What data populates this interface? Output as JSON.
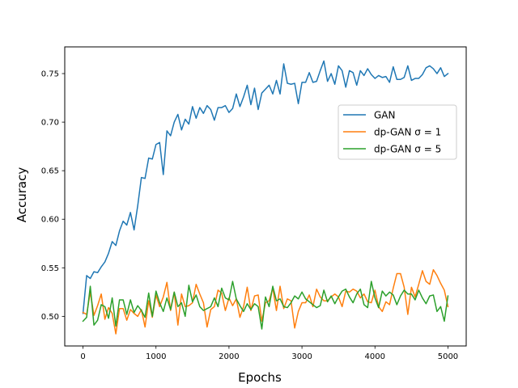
{
  "chart_data": {
    "type": "line",
    "xlabel": "Epochs",
    "ylabel": "Accuracy",
    "xlim": [
      -250,
      5250
    ],
    "ylim": [
      0.4695,
      0.7775
    ],
    "xticks": [
      0,
      1000,
      2000,
      3000,
      4000,
      5000
    ],
    "xtick_labels": [
      "0",
      "1000",
      "2000",
      "3000",
      "4000",
      "5000"
    ],
    "yticks": [
      0.5,
      0.55,
      0.6,
      0.65,
      0.7,
      0.75
    ],
    "ytick_labels": [
      "0.50",
      "0.55",
      "0.60",
      "0.65",
      "0.70",
      "0.75"
    ],
    "grid": false,
    "legend_position": "center-right",
    "x": [
      0,
      50,
      100,
      150,
      200,
      250,
      300,
      350,
      400,
      450,
      500,
      550,
      600,
      650,
      700,
      750,
      800,
      850,
      900,
      950,
      1000,
      1050,
      1100,
      1150,
      1200,
      1250,
      1300,
      1350,
      1400,
      1450,
      1500,
      1550,
      1600,
      1650,
      1700,
      1750,
      1800,
      1850,
      1900,
      1950,
      2000,
      2050,
      2100,
      2150,
      2200,
      2250,
      2300,
      2350,
      2400,
      2450,
      2500,
      2550,
      2600,
      2650,
      2700,
      2750,
      2800,
      2850,
      2900,
      2950,
      3000,
      3050,
      3100,
      3150,
      3200,
      3250,
      3300,
      3350,
      3400,
      3450,
      3500,
      3550,
      3600,
      3650,
      3700,
      3750,
      3800,
      3850,
      3900,
      3950,
      4000,
      4050,
      4100,
      4150,
      4200,
      4250,
      4300,
      4350,
      4400,
      4450,
      4500,
      4550,
      4600,
      4650,
      4700,
      4750,
      4800,
      4850,
      4900,
      4950,
      5000
    ],
    "series": [
      {
        "name": "GAN",
        "color": "#1f77b4",
        "values": [
          0.503,
          0.542,
          0.539,
          0.546,
          0.545,
          0.551,
          0.556,
          0.565,
          0.577,
          0.573,
          0.588,
          0.598,
          0.594,
          0.607,
          0.589,
          0.614,
          0.643,
          0.642,
          0.663,
          0.662,
          0.677,
          0.679,
          0.646,
          0.691,
          0.686,
          0.7,
          0.708,
          0.692,
          0.703,
          0.698,
          0.716,
          0.704,
          0.715,
          0.709,
          0.717,
          0.713,
          0.702,
          0.715,
          0.715,
          0.717,
          0.71,
          0.714,
          0.729,
          0.716,
          0.726,
          0.738,
          0.718,
          0.735,
          0.713,
          0.73,
          0.734,
          0.738,
          0.729,
          0.743,
          0.729,
          0.76,
          0.74,
          0.739,
          0.74,
          0.719,
          0.741,
          0.741,
          0.751,
          0.741,
          0.742,
          0.753,
          0.763,
          0.742,
          0.75,
          0.739,
          0.758,
          0.753,
          0.736,
          0.753,
          0.751,
          0.738,
          0.753,
          0.748,
          0.755,
          0.749,
          0.745,
          0.748,
          0.746,
          0.747,
          0.741,
          0.757,
          0.744,
          0.744,
          0.746,
          0.758,
          0.743,
          0.745,
          0.745,
          0.749,
          0.756,
          0.758,
          0.755,
          0.75,
          0.756,
          0.747,
          0.75
        ]
      },
      {
        "name": "dp-GAN σ = 1",
        "color": "#ff7f0e",
        "values": [
          0.504,
          0.502,
          0.525,
          0.501,
          0.511,
          0.523,
          0.497,
          0.509,
          0.503,
          0.482,
          0.508,
          0.508,
          0.496,
          0.507,
          0.503,
          0.5,
          0.507,
          0.489,
          0.516,
          0.499,
          0.522,
          0.51,
          0.52,
          0.535,
          0.506,
          0.525,
          0.491,
          0.523,
          0.51,
          0.511,
          0.514,
          0.533,
          0.523,
          0.514,
          0.489,
          0.507,
          0.51,
          0.527,
          0.524,
          0.506,
          0.519,
          0.511,
          0.518,
          0.499,
          0.51,
          0.53,
          0.506,
          0.521,
          0.522,
          0.495,
          0.514,
          0.516,
          0.529,
          0.506,
          0.531,
          0.508,
          0.518,
          0.516,
          0.488,
          0.505,
          0.514,
          0.514,
          0.522,
          0.51,
          0.528,
          0.52,
          0.516,
          0.516,
          0.52,
          0.523,
          0.52,
          0.51,
          0.526,
          0.525,
          0.528,
          0.526,
          0.519,
          0.523,
          0.515,
          0.514,
          0.527,
          0.51,
          0.505,
          0.515,
          0.512,
          0.529,
          0.544,
          0.544,
          0.53,
          0.502,
          0.53,
          0.52,
          0.533,
          0.547,
          0.536,
          0.533,
          0.548,
          0.542,
          0.534,
          0.527,
          0.51
        ]
      },
      {
        "name": "dp-GAN σ = 5",
        "color": "#2ca02c",
        "values": [
          0.495,
          0.499,
          0.531,
          0.491,
          0.496,
          0.512,
          0.51,
          0.498,
          0.519,
          0.49,
          0.517,
          0.517,
          0.502,
          0.517,
          0.504,
          0.511,
          0.506,
          0.499,
          0.524,
          0.5,
          0.526,
          0.514,
          0.505,
          0.519,
          0.507,
          0.525,
          0.51,
          0.514,
          0.5,
          0.532,
          0.515,
          0.522,
          0.51,
          0.506,
          0.508,
          0.51,
          0.519,
          0.51,
          0.529,
          0.519,
          0.517,
          0.536,
          0.518,
          0.511,
          0.505,
          0.513,
          0.507,
          0.513,
          0.51,
          0.487,
          0.52,
          0.51,
          0.531,
          0.516,
          0.518,
          0.51,
          0.509,
          0.514,
          0.521,
          0.518,
          0.525,
          0.518,
          0.515,
          0.512,
          0.509,
          0.511,
          0.527,
          0.515,
          0.521,
          0.513,
          0.52,
          0.526,
          0.528,
          0.52,
          0.514,
          0.523,
          0.528,
          0.512,
          0.509,
          0.536,
          0.519,
          0.509,
          0.526,
          0.521,
          0.525,
          0.522,
          0.512,
          0.521,
          0.527,
          0.523,
          0.523,
          0.517,
          0.527,
          0.519,
          0.513,
          0.521,
          0.522,
          0.505,
          0.51,
          0.495,
          0.521
        ]
      }
    ]
  }
}
